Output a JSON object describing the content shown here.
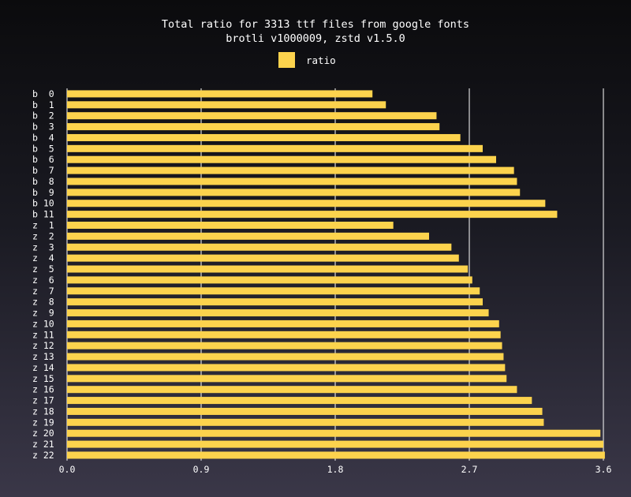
{
  "chart_data": {
    "type": "bar",
    "orientation": "horizontal",
    "title": "Total ratio for 3313 ttf files from google fonts",
    "subtitle": "brotli v1000009, zstd v1.5.0",
    "legend": {
      "position": "top-center",
      "entries": [
        "ratio"
      ]
    },
    "xlim": [
      0,
      3.6
    ],
    "xticks": [
      "0.0",
      "0.9",
      "1.8",
      "2.7",
      "3.6"
    ],
    "grid": true,
    "bar_color": "#fcd34d",
    "categories": [
      "b  0",
      "b  1",
      "b  2",
      "b  3",
      "b  4",
      "b  5",
      "b  6",
      "b  7",
      "b  8",
      "b  9",
      "b 10",
      "b 11",
      "z  1",
      "z  2",
      "z  3",
      "z  4",
      "z  5",
      "z  6",
      "z  7",
      "z  8",
      "z  9",
      "z 10",
      "z 11",
      "z 12",
      "z 13",
      "z 14",
      "z 15",
      "z 16",
      "z 17",
      "z 18",
      "z 19",
      "z 20",
      "z 21",
      "z 22"
    ],
    "series": [
      {
        "name": "ratio",
        "values": [
          2.05,
          2.14,
          2.48,
          2.5,
          2.64,
          2.79,
          2.88,
          3.0,
          3.02,
          3.04,
          3.21,
          3.29,
          2.19,
          2.43,
          2.58,
          2.63,
          2.69,
          2.72,
          2.77,
          2.79,
          2.83,
          2.9,
          2.91,
          2.92,
          2.93,
          2.94,
          2.95,
          3.02,
          3.12,
          3.19,
          3.2,
          3.58,
          3.6,
          3.61
        ]
      }
    ]
  }
}
